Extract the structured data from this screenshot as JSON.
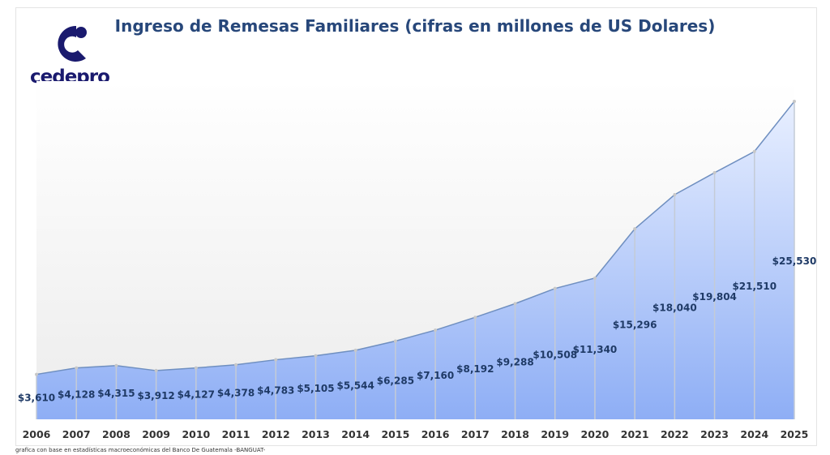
{
  "logo": {
    "text": "cedepro"
  },
  "footer": "grafica con base en estadísticas macroeconómicas del Banco De Guatemala -BANGUAT-",
  "chart_data": {
    "type": "area",
    "title": "Ingreso de Remesas Familiares (cifras en millones de US Dolares)",
    "xlabel": "",
    "ylabel": "",
    "ylim": [
      0,
      25530
    ],
    "grid": false,
    "x": [
      "2006",
      "2007",
      "2008",
      "2009",
      "2010",
      "2011",
      "2012",
      "2013",
      "2014",
      "2015",
      "2016",
      "2017",
      "2018",
      "2019",
      "2020",
      "2021",
      "2022",
      "2023",
      "2024",
      "2025"
    ],
    "values": [
      3610,
      4128,
      4315,
      3912,
      4127,
      4378,
      4783,
      5105,
      5544,
      6285,
      7160,
      8192,
      9288,
      10508,
      11340,
      15296,
      18040,
      19804,
      21510,
      25530
    ],
    "labels": [
      "$3,610",
      "$4,128",
      "$4,315",
      "$3,912",
      "$4,127",
      "$4,378",
      "$4,783",
      "$5,105",
      "$5,544",
      "$6,285",
      "$7,160",
      "$8,192",
      "$9,288",
      "$10,508",
      "$11,340",
      "$15,296",
      "$18,040",
      "$19,804",
      "$21,510",
      "$25,530"
    ],
    "colors": {
      "line": "#6f8fc0",
      "fill_top": "#e8efff",
      "fill_bottom": "#8eaef5",
      "label": "#1f3a66"
    }
  }
}
